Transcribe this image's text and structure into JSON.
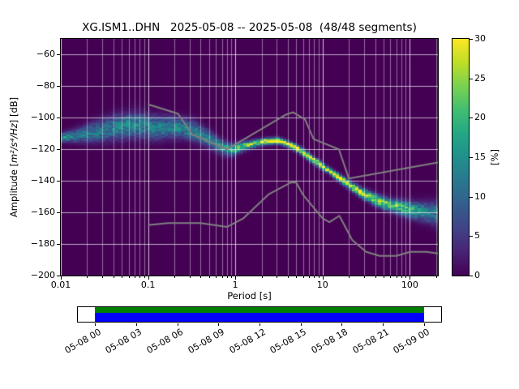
{
  "title": "XG.ISM1..DHN   2025-05-08 -- 2025-05-08  (48/48 segments)",
  "axes": {
    "xlabel": "Period [s]",
    "ylabel_prefix": "Amplitude [",
    "ylabel_math": "m²/s⁴/Hz",
    "ylabel_suffix": "] [dB]",
    "colorbar_label": "[%]",
    "x_tick_values": [
      0.01,
      0.1,
      1,
      10,
      100
    ],
    "x_tick_labels": [
      "0.01",
      "0.1",
      "1",
      "10",
      "100"
    ],
    "y_tick_values": [
      -60,
      -80,
      -100,
      -120,
      -140,
      -160,
      -180,
      -200
    ],
    "y_tick_labels": [
      "−60",
      "−80",
      "−100",
      "−120",
      "−140",
      "−160",
      "−180",
      "−200"
    ],
    "colorbar_tick_values": [
      0,
      5,
      10,
      15,
      20,
      25,
      30
    ],
    "colorbar_tick_labels": [
      "0",
      "5",
      "10",
      "15",
      "20",
      "25",
      "30"
    ]
  },
  "chart_data": {
    "type": "heatmap",
    "title": "XG.ISM1..DHN   2025-05-08 -- 2025-05-08  (48/48 segments)",
    "station": "XG.ISM1..DHN",
    "date_range": "2025-05-08 -- 2025-05-08",
    "segments_used": 48,
    "segments_total": 48,
    "xlabel": "Period [s]",
    "ylabel": "Amplitude [m^2/s^4/Hz] [dB]",
    "xscale": "log",
    "xlim": [
      0.01,
      210
    ],
    "ylim": [
      -200,
      -50
    ],
    "grid": true,
    "colorbar": {
      "label": "[%]",
      "min": 0,
      "max": 30,
      "colormap": "viridis",
      "position": "right"
    },
    "psd_distribution_ridge": {
      "comment": "Probabilistic PSD mode vs period: [period_s, mode_dB, spread_dB, peak_percent]",
      "points": [
        [
          0.01,
          -112.5,
          1.8,
          15
        ],
        [
          0.014,
          -111.5,
          2.6,
          13
        ],
        [
          0.02,
          -110.0,
          3.6,
          12
        ],
        [
          0.03,
          -108.0,
          4.6,
          12
        ],
        [
          0.045,
          -106.0,
          5.0,
          13
        ],
        [
          0.065,
          -104.5,
          5.0,
          14
        ],
        [
          0.09,
          -105.0,
          5.0,
          13
        ],
        [
          0.12,
          -106.5,
          5.0,
          12
        ],
        [
          0.17,
          -106.0,
          4.5,
          13
        ],
        [
          0.25,
          -106.5,
          4.0,
          14
        ],
        [
          0.35,
          -109.0,
          4.0,
          13
        ],
        [
          0.5,
          -113.5,
          3.5,
          13
        ],
        [
          0.7,
          -118.5,
          3.0,
          15
        ],
        [
          0.9,
          -120.5,
          2.5,
          18
        ],
        [
          1.2,
          -118.5,
          2.0,
          22
        ],
        [
          1.6,
          -116.5,
          1.6,
          26
        ],
        [
          2.2,
          -115.0,
          1.4,
          30
        ],
        [
          3.0,
          -114.5,
          1.4,
          30
        ],
        [
          4.0,
          -116.5,
          1.4,
          30
        ],
        [
          5.5,
          -120.5,
          1.4,
          30
        ],
        [
          7.5,
          -126.0,
          1.4,
          30
        ],
        [
          10.0,
          -130.5,
          1.4,
          30
        ],
        [
          14.0,
          -136.5,
          1.5,
          29
        ],
        [
          20.0,
          -142.5,
          1.7,
          28
        ],
        [
          28.0,
          -147.5,
          2.0,
          27
        ],
        [
          40.0,
          -152.0,
          2.3,
          26
        ],
        [
          60.0,
          -155.5,
          2.6,
          24
        ],
        [
          85.0,
          -157.5,
          3.0,
          21
        ],
        [
          120.0,
          -159.0,
          3.5,
          17
        ],
        [
          170.0,
          -160.0,
          4.2,
          13
        ],
        [
          210.0,
          -160.5,
          4.8,
          11
        ]
      ]
    },
    "noise_models": {
      "name": "Peterson NHNM / NLNM reference curves",
      "high": [
        [
          0.1,
          -91.5
        ],
        [
          0.22,
          -97.4
        ],
        [
          0.32,
          -110.5
        ],
        [
          0.8,
          -120.0
        ],
        [
          3.8,
          -98.0
        ],
        [
          4.6,
          -96.5
        ],
        [
          6.3,
          -101.0
        ],
        [
          7.9,
          -113.5
        ],
        [
          15.4,
          -120.0
        ],
        [
          20.0,
          -138.5
        ],
        [
          210.0,
          -128.3
        ]
      ],
      "low": [
        [
          0.1,
          -168.0
        ],
        [
          0.17,
          -166.7
        ],
        [
          0.4,
          -166.7
        ],
        [
          0.8,
          -169.2
        ],
        [
          1.24,
          -163.7
        ],
        [
          2.4,
          -148.6
        ],
        [
          4.3,
          -141.1
        ],
        [
          5.0,
          -141.1
        ],
        [
          6.0,
          -149.0
        ],
        [
          10.0,
          -163.7
        ],
        [
          12.0,
          -166.2
        ],
        [
          15.6,
          -162.1
        ],
        [
          21.9,
          -177.5
        ],
        [
          31.6,
          -185.0
        ],
        [
          45.0,
          -187.5
        ],
        [
          70.0,
          -187.5
        ],
        [
          101.0,
          -185.0
        ],
        [
          154.0,
          -185.0
        ],
        [
          210.0,
          -186.0
        ]
      ]
    }
  },
  "timeline": {
    "tick_labels": [
      "05-08 00",
      "05-08 03",
      "05-08 06",
      "05-08 09",
      "05-08 12",
      "05-08 15",
      "05-08 18",
      "05-08 21",
      "05-09 00"
    ],
    "coverage_start_frac": 0.047,
    "coverage_end_frac": 0.953
  },
  "colors": {
    "background": "#440154",
    "grid": "#ffffff",
    "noise_model_line": "#808080",
    "timeline_green": "#008000",
    "timeline_blue": "#0000ff",
    "viridis_stops": [
      [
        0.0,
        68,
        1,
        84
      ],
      [
        0.1,
        72,
        35,
        116
      ],
      [
        0.2,
        64,
        67,
        135
      ],
      [
        0.3,
        52,
        94,
        141
      ],
      [
        0.4,
        41,
        120,
        142
      ],
      [
        0.5,
        32,
        144,
        140
      ],
      [
        0.6,
        34,
        167,
        132
      ],
      [
        0.7,
        66,
        190,
        113
      ],
      [
        0.8,
        121,
        209,
        81
      ],
      [
        0.9,
        189,
        222,
        38
      ],
      [
        1.0,
        253,
        231,
        37
      ]
    ]
  }
}
